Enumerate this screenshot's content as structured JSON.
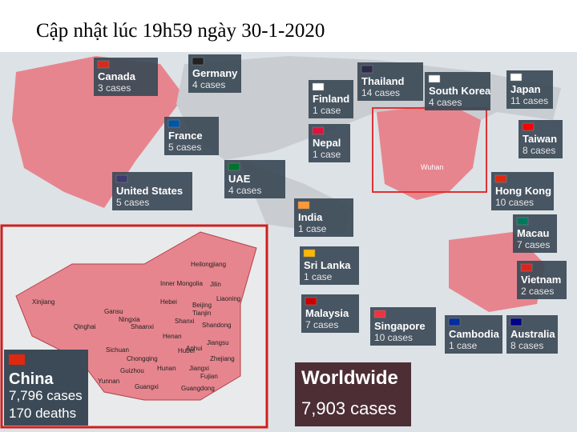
{
  "header": {
    "title": "Cập nhật lúc 19h59 ngày 30-1-2020"
  },
  "map": {
    "wuhan_label": "Wuhan",
    "countries": [
      {
        "name": "Canada",
        "cases": "3 cases"
      },
      {
        "name": "Germany",
        "cases": "4 cases"
      },
      {
        "name": "Thailand",
        "cases": "14 cases"
      },
      {
        "name": "Finland",
        "cases": "1 case"
      },
      {
        "name": "South Korea",
        "cases": "4 cases"
      },
      {
        "name": "Japan",
        "cases": "11 cases"
      },
      {
        "name": "France",
        "cases": "5 cases"
      },
      {
        "name": "Nepal",
        "cases": "1 case"
      },
      {
        "name": "Taiwan",
        "cases": "8 cases"
      },
      {
        "name": "UAE",
        "cases": "4 cases"
      },
      {
        "name": "United States",
        "cases": "5 cases"
      },
      {
        "name": "Hong Kong",
        "cases": "10 cases"
      },
      {
        "name": "India",
        "cases": "1 case"
      },
      {
        "name": "Macau",
        "cases": "7 cases"
      },
      {
        "name": "Sri Lanka",
        "cases": "1 case"
      },
      {
        "name": "Vietnam",
        "cases": "2 cases"
      },
      {
        "name": "Malaysia",
        "cases": "7 cases"
      },
      {
        "name": "Singapore",
        "cases": "10 cases"
      },
      {
        "name": "Cambodia",
        "cases": "1 case"
      },
      {
        "name": "Australia",
        "cases": "8 cases"
      }
    ],
    "china": {
      "name": "China",
      "cases": "7,796 cases",
      "deaths": "170 deaths",
      "provinces": [
        "Heilongjiang",
        "Inner Mongolia",
        "Jilin",
        "Xinjiang",
        "Liaoning",
        "Hebei",
        "Beijing",
        "Tianjin",
        "Gansu",
        "Ningxia",
        "Shanxi",
        "Shandong",
        "Qinghai",
        "Shaanxi",
        "Henan",
        "Jiangsu",
        "Anhui",
        "Sichuan",
        "Hubei",
        "Chongqing",
        "Zhejiang",
        "Guizhou",
        "Hunan",
        "Jiangxi",
        "Yunnan",
        "Fujian",
        "Guangxi",
        "Guangdong"
      ]
    },
    "worldwide": {
      "label": "Worldwide",
      "cases": "7,903 cases"
    }
  }
}
